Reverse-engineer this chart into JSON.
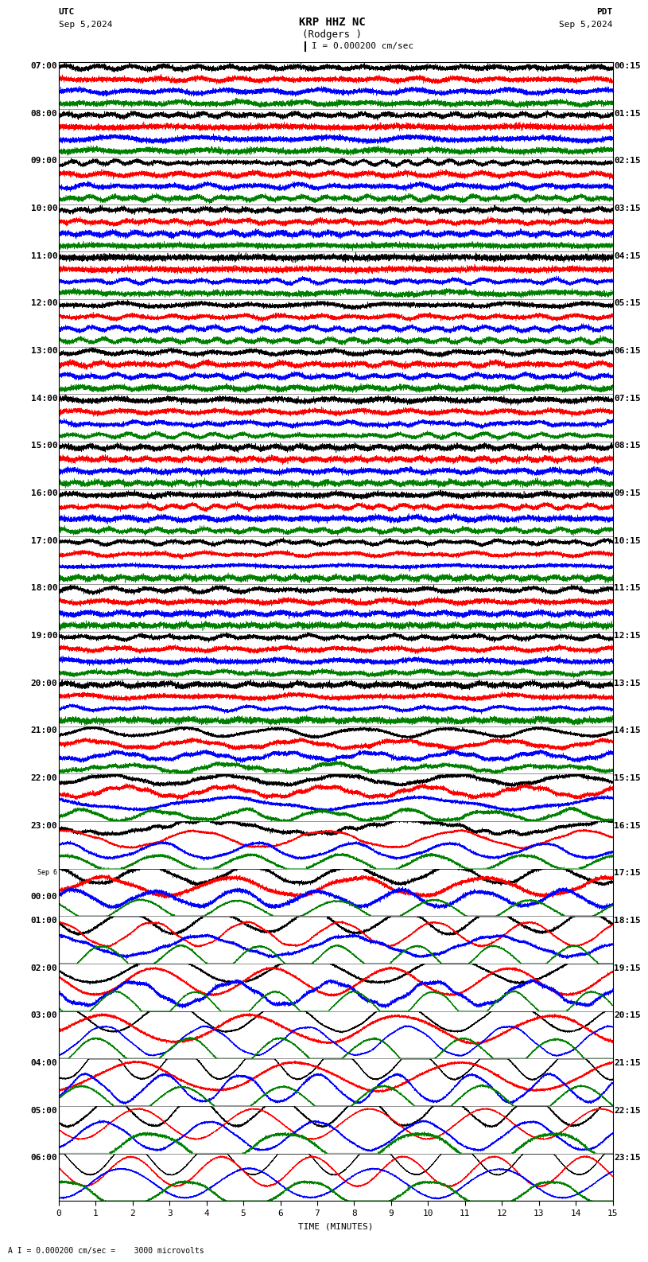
{
  "title_line1": "KRP HHZ NC",
  "title_line2": "(Rodgers )",
  "scale_label": "I = 0.000200 cm/sec",
  "utc_label": "UTC",
  "utc_date": "Sep 5,2024",
  "pdt_label": "PDT",
  "pdt_date": "Sep 5,2024",
  "bottom_label": "A I = 0.000200 cm/sec =    3000 microvolts",
  "xlabel": "TIME (MINUTES)",
  "left_times": [
    "07:00",
    "08:00",
    "09:00",
    "10:00",
    "11:00",
    "12:00",
    "13:00",
    "14:00",
    "15:00",
    "16:00",
    "17:00",
    "18:00",
    "19:00",
    "20:00",
    "21:00",
    "22:00",
    "23:00",
    "Sep 6\n00:00",
    "01:00",
    "02:00",
    "03:00",
    "04:00",
    "05:00",
    "06:00"
  ],
  "right_times": [
    "00:15",
    "01:15",
    "02:15",
    "03:15",
    "04:15",
    "05:15",
    "06:15",
    "07:15",
    "08:15",
    "09:15",
    "10:15",
    "11:15",
    "12:15",
    "13:15",
    "14:15",
    "15:15",
    "16:15",
    "17:15",
    "18:15",
    "19:15",
    "20:15",
    "21:15",
    "22:15",
    "23:15"
  ],
  "n_rows": 24,
  "n_traces_per_row": 4,
  "colors": [
    "black",
    "red",
    "blue",
    "green"
  ],
  "background": "white",
  "minutes": 15,
  "fs": 20,
  "title_fontsize": 10,
  "label_fontsize": 8,
  "tick_fontsize": 8,
  "figwidth": 8.5,
  "figheight": 15.84,
  "row_amp_profile": [
    0.08,
    0.08,
    0.08,
    0.08,
    0.08,
    0.08,
    0.08,
    0.1,
    0.12,
    0.1,
    0.08,
    0.08,
    0.08,
    0.08,
    0.15,
    0.2,
    0.3,
    0.4,
    0.5,
    0.6,
    0.7,
    0.8,
    0.7,
    0.6
  ]
}
